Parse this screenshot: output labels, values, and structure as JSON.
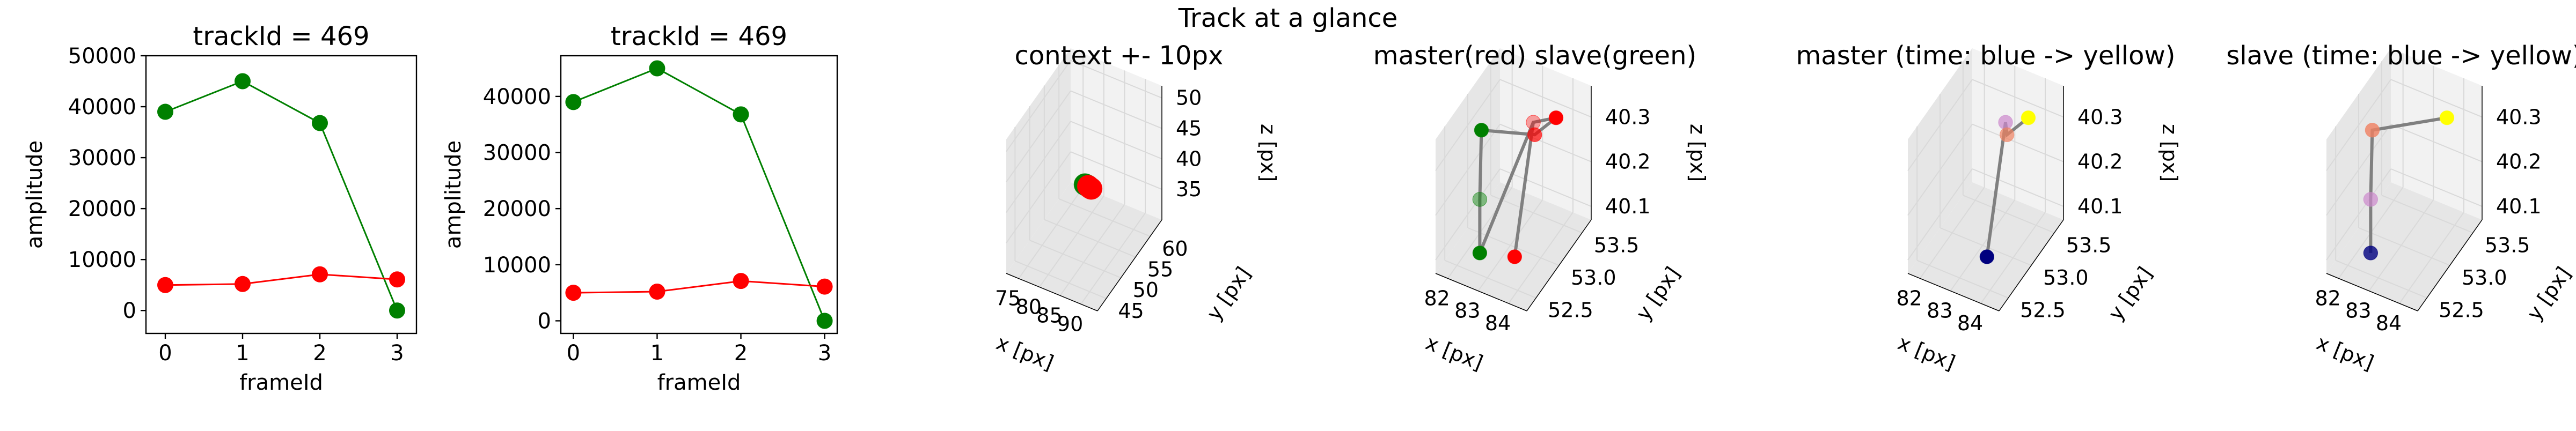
{
  "suptitle": "Track at a glance",
  "colors": {
    "master": "#ff0000",
    "slave": "#008000",
    "trace": "#808080",
    "pane_light": "#f2f2f2",
    "pane_dark": "#e6e6e6",
    "grid": "#d9d9d9",
    "time_start": "#00007f",
    "time_end": "#ffff00"
  },
  "chart_data": [
    {
      "type": "line",
      "title": "trackId = 469",
      "xlabel": "frameId",
      "ylabel": "amplitude",
      "x": [
        0,
        1,
        2,
        3
      ],
      "series": [
        {
          "key": "slave",
          "color": "#008000",
          "values": [
            39000,
            45000,
            36800,
            0
          ]
        },
        {
          "key": "master",
          "color": "#ff0000",
          "values": [
            5000,
            5200,
            7100,
            6100
          ]
        }
      ],
      "xlim": [
        -0.25,
        3.25
      ],
      "ylim": [
        -4500,
        50000
      ],
      "xticks": [
        0,
        1,
        2,
        3
      ],
      "xtick_labels": [
        "0",
        "1",
        "2",
        "3"
      ],
      "yticks": [
        0,
        10000,
        20000,
        30000,
        40000,
        50000
      ],
      "ytick_labels": [
        "0",
        "10000",
        "20000",
        "30000",
        "40000",
        "50000"
      ]
    },
    {
      "type": "line",
      "title": "trackId = 469",
      "xlabel": "frameId",
      "ylabel": "amplitude",
      "x": [
        0,
        1,
        2,
        3
      ],
      "series": [
        {
          "key": "slave",
          "color": "#008000",
          "values": [
            39000,
            45000,
            36800,
            0
          ]
        },
        {
          "key": "master",
          "color": "#ff0000",
          "values": [
            5000,
            5200,
            7100,
            6100
          ]
        }
      ],
      "xlim": [
        -0.15,
        3.15
      ],
      "ylim": [
        -2250,
        47250
      ],
      "xticks": [
        0,
        1,
        2,
        3
      ],
      "xtick_labels": [
        "0",
        "1",
        "2",
        "3"
      ],
      "yticks": [
        0,
        10000,
        20000,
        30000,
        40000
      ],
      "ytick_labels": [
        "0",
        "10000",
        "20000",
        "30000",
        "40000"
      ]
    },
    {
      "type": "scatter",
      "subtype": "3d",
      "title": "context +- 10px",
      "xlabel": "x [px]",
      "ylabel": "y [px]",
      "zlabel": "z [px]",
      "xlim": [
        72,
        94
      ],
      "ylim": [
        42,
        64
      ],
      "zlim": [
        30,
        52
      ],
      "xticks": [
        75,
        80,
        85,
        90
      ],
      "yticks": [
        45,
        50,
        55,
        60
      ],
      "zticks": [
        35,
        40,
        45,
        50
      ],
      "points": [
        {
          "x": 83.2,
          "y": 53.0,
          "z": 40.25,
          "color": "#008000",
          "size": 3.4
        },
        {
          "x": 83.6,
          "y": 53.0,
          "z": 40.22,
          "color": "#008000",
          "size": 3.4
        },
        {
          "x": 84.0,
          "y": 53.0,
          "z": 40.2,
          "color": "#ff0000",
          "size": 3.4
        },
        {
          "x": 84.4,
          "y": 52.9,
          "z": 40.15,
          "color": "#ff0000",
          "size": 3.4
        },
        {
          "x": 84.8,
          "y": 52.9,
          "z": 40.1,
          "color": "#ff0000",
          "size": 3.4
        }
      ],
      "lines": [
        {
          "color": "#808080",
          "pts": [
            [
              83.2,
              53.0,
              40.25
            ],
            [
              84.8,
              52.9,
              40.1
            ]
          ]
        }
      ]
    },
    {
      "type": "scatter",
      "subtype": "3d",
      "title": "master(red) slave(green)",
      "xlabel": "x [px]",
      "ylabel": "y [px]",
      "zlabel": "z [px]",
      "xlim": [
        81.6,
        84.6
      ],
      "ylim": [
        52.3,
        53.7
      ],
      "zlim": [
        40.07,
        40.37
      ],
      "xticks": [
        82,
        83,
        84
      ],
      "yticks": [
        52.5,
        53.0,
        53.5
      ],
      "ytick_labels": [
        "52.5",
        "53.0",
        "53.5"
      ],
      "zticks": [
        40.1,
        40.2,
        40.3
      ],
      "points": [
        {
          "x": 82.2,
          "y": 52.9,
          "z": 40.32,
          "color": "#008000",
          "size": 2.2
        },
        {
          "x": 82.6,
          "y": 52.6,
          "z": 40.22,
          "color": "#008000",
          "size": 2.2,
          "alpha": 0.45
        },
        {
          "x": 82.6,
          "y": 52.6,
          "z": 40.1,
          "color": "#008000",
          "size": 2.2
        },
        {
          "x": 83.3,
          "y": 53.3,
          "z": 40.31,
          "color": "#ff0000",
          "size": 2.2,
          "alpha": 0.35
        },
        {
          "x": 83.8,
          "y": 53.0,
          "z": 40.34,
          "color": "#ff0000",
          "size": 2.2,
          "alpha": 0.7
        },
        {
          "x": 84.2,
          "y": 53.2,
          "z": 40.36,
          "color": "#ff0000",
          "size": 2.2
        },
        {
          "x": 84.2,
          "y": 52.3,
          "z": 40.18,
          "color": "#ff0000",
          "size": 2.2
        }
      ],
      "lines": [
        {
          "color": "#808080",
          "pts": [
            [
              82.2,
              52.9,
              40.32
            ],
            [
              82.6,
              52.6,
              40.22
            ],
            [
              82.6,
              52.6,
              40.1
            ],
            [
              83.3,
              53.3,
              40.31
            ],
            [
              84.2,
              53.2,
              40.36
            ]
          ]
        },
        {
          "color": "#808080",
          "pts": [
            [
              82.2,
              52.9,
              40.32
            ],
            [
              83.8,
              53.0,
              40.34
            ],
            [
              84.2,
              53.2,
              40.36
            ]
          ]
        },
        {
          "color": "#808080",
          "pts": [
            [
              83.3,
              53.3,
              40.31
            ],
            [
              84.2,
              52.3,
              40.18
            ]
          ]
        }
      ]
    },
    {
      "type": "scatter",
      "subtype": "3d",
      "title": "master (time: blue -> yellow)",
      "xlabel": "x [px]",
      "ylabel": "y [px]",
      "zlabel": "z [px]",
      "xlim": [
        81.6,
        84.6
      ],
      "ylim": [
        52.3,
        53.7
      ],
      "zlim": [
        40.07,
        40.37
      ],
      "xticks": [
        82,
        83,
        84
      ],
      "yticks": [
        52.5,
        53.0,
        53.5
      ],
      "ytick_labels": [
        "52.5",
        "53.0",
        "53.5"
      ],
      "zticks": [
        40.1,
        40.2,
        40.3
      ],
      "points": [
        {
          "x": 84.2,
          "y": 52.3,
          "z": 40.18,
          "color": "#00007f",
          "size": 2.2
        },
        {
          "x": 83.3,
          "y": 53.3,
          "z": 40.31,
          "color": "#cc88cc",
          "size": 2.2,
          "alpha": 0.7
        },
        {
          "x": 83.8,
          "y": 53.0,
          "z": 40.34,
          "color": "#f08060",
          "size": 2.2,
          "alpha": 0.7
        },
        {
          "x": 84.2,
          "y": 53.2,
          "z": 40.36,
          "color": "#ffff00",
          "size": 2.2
        }
      ],
      "lines": [
        {
          "color": "#808080",
          "pts": [
            [
              84.2,
              52.3,
              40.18
            ],
            [
              83.3,
              53.3,
              40.31
            ],
            [
              83.8,
              53.0,
              40.34
            ],
            [
              84.2,
              53.2,
              40.36
            ]
          ]
        }
      ]
    },
    {
      "type": "scatter",
      "subtype": "3d",
      "title": "slave (time: blue -> yellow)",
      "xlabel": "x [px]",
      "ylabel": "y [px]",
      "zlabel": "z [px]",
      "xlim": [
        81.6,
        84.6
      ],
      "ylim": [
        52.3,
        53.7
      ],
      "zlim": [
        40.07,
        40.37
      ],
      "xticks": [
        82,
        83,
        84
      ],
      "yticks": [
        52.5,
        53.0,
        53.5
      ],
      "ytick_labels": [
        "52.5",
        "53.0",
        "53.5"
      ],
      "zticks": [
        40.1,
        40.2,
        40.3
      ],
      "points": [
        {
          "x": 82.6,
          "y": 52.6,
          "z": 40.1,
          "color": "#00007f",
          "size": 2.2,
          "alpha": 0.8
        },
        {
          "x": 82.6,
          "y": 52.6,
          "z": 40.22,
          "color": "#cc88cc",
          "size": 2.2,
          "alpha": 0.7
        },
        {
          "x": 82.2,
          "y": 52.9,
          "z": 40.32,
          "color": "#f08060",
          "size": 2.2,
          "alpha": 0.8
        },
        {
          "x": 84.2,
          "y": 53.2,
          "z": 40.36,
          "color": "#ffff00",
          "size": 2.2
        }
      ],
      "lines": [
        {
          "color": "#808080",
          "pts": [
            [
              82.6,
              52.6,
              40.1
            ],
            [
              82.6,
              52.6,
              40.22
            ],
            [
              82.2,
              52.9,
              40.32
            ],
            [
              84.2,
              53.2,
              40.36
            ]
          ]
        }
      ]
    }
  ]
}
